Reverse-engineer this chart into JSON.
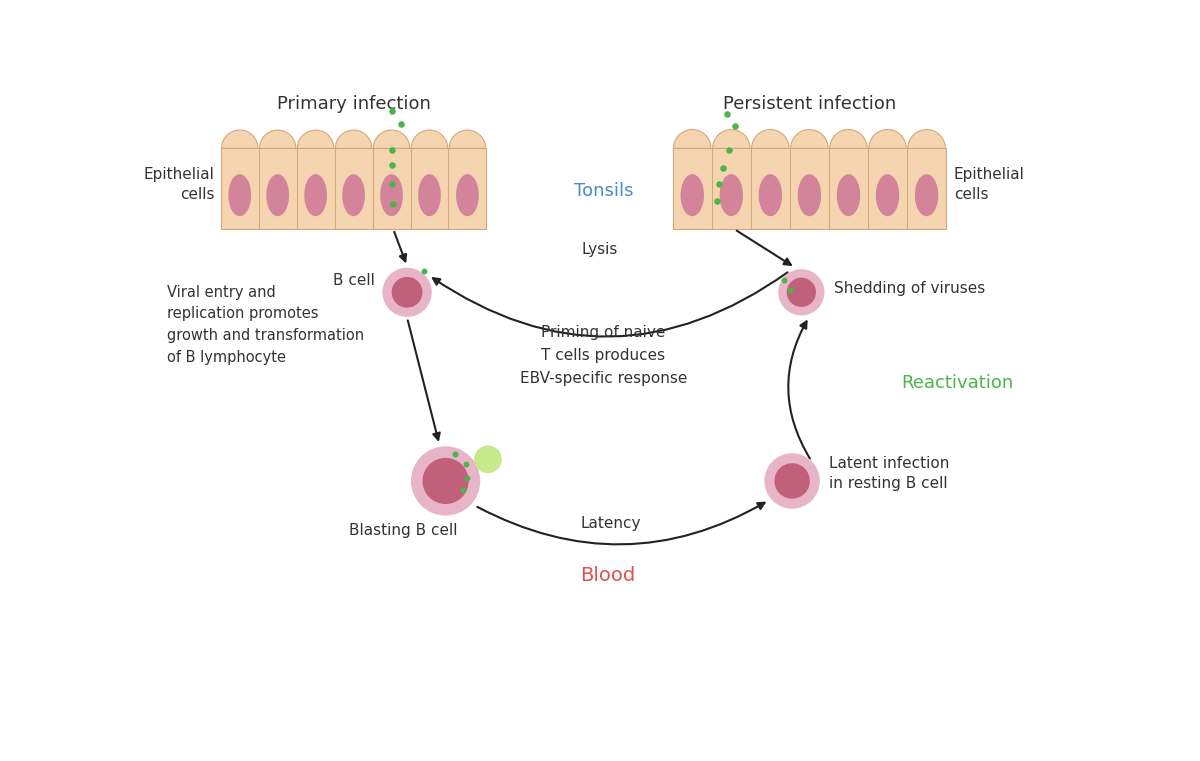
{
  "bg_color": "#ffffff",
  "epithelial_color": "#f5d5b0",
  "nucleus_color": "#d4849a",
  "bcell_outer_color": "#e8b4c8",
  "bcell_inner_color": "#c0607a",
  "bud_color": "#c8e88c",
  "connector_color": "#a8cce0",
  "virus_color": "#4ab54a",
  "tonsils_color": "#4a8cc4",
  "blood_color": "#e05050",
  "reactivation_color": "#4ab54a",
  "arrow_color": "#222222",
  "text_color": "#333333",
  "cell_border_color": "#d4a87a",
  "title_left": "Primary infection",
  "title_right": "Persistent infection",
  "label_tonsils": "Tonsils",
  "label_blood": "Blood",
  "label_reactivation": "Reactivation",
  "label_lysis": "Lysis",
  "label_latency": "Latency",
  "label_bcell": "B cell",
  "label_blasting": "Blasting B cell",
  "label_latent": "Latent infection\nin resting B cell",
  "label_shedding": "Shedding of viruses",
  "label_priming": "Priming of naive\nT cells produces\nEBV-specific response",
  "label_viral": "Viral entry and\nreplication promotes\ngrowth and transformation\nof B lymphocyte",
  "label_epithelial_left": "Epithelial\ncells",
  "label_epithelial_right": "Epithelial\ncells"
}
